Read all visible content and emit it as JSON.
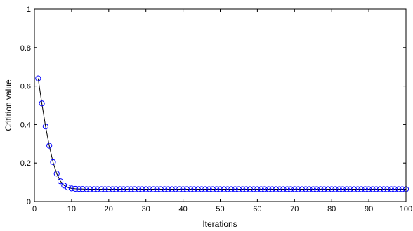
{
  "chart_data": {
    "type": "line",
    "xlabel": "Iterations",
    "ylabel": "Critirion value",
    "xlim": [
      0,
      100
    ],
    "ylim": [
      0,
      1
    ],
    "xticks": [
      "0",
      "10",
      "20",
      "30",
      "40",
      "50",
      "60",
      "70",
      "80",
      "90",
      "100"
    ],
    "yticks": [
      "0",
      "0.2",
      "0.4",
      "0.6",
      "0.8",
      "1"
    ],
    "grid": false,
    "line_color": "#000000",
    "marker_color": "#0000ff",
    "marker": "circle",
    "series": [
      {
        "x": [
          1,
          2,
          3,
          4,
          5,
          6,
          7,
          8,
          9,
          10,
          11,
          12,
          13,
          14,
          15,
          16,
          17,
          18,
          19,
          20,
          21,
          22,
          23,
          24,
          25,
          26,
          27,
          28,
          29,
          30,
          31,
          32,
          33,
          34,
          35,
          36,
          37,
          38,
          39,
          40,
          41,
          42,
          43,
          44,
          45,
          46,
          47,
          48,
          49,
          50,
          51,
          52,
          53,
          54,
          55,
          56,
          57,
          58,
          59,
          60,
          61,
          62,
          63,
          64,
          65,
          66,
          67,
          68,
          69,
          70,
          71,
          72,
          73,
          74,
          75,
          76,
          77,
          78,
          79,
          80,
          81,
          82,
          83,
          84,
          85,
          86,
          87,
          88,
          89,
          90,
          91,
          92,
          93,
          94,
          95,
          96,
          97,
          98,
          99,
          100
        ],
        "y": [
          0.64,
          0.51,
          0.39,
          0.29,
          0.205,
          0.145,
          0.105,
          0.083,
          0.073,
          0.068,
          0.066,
          0.065,
          0.065,
          0.064,
          0.064,
          0.064,
          0.064,
          0.064,
          0.064,
          0.064,
          0.064,
          0.064,
          0.064,
          0.064,
          0.064,
          0.064,
          0.064,
          0.064,
          0.064,
          0.064,
          0.064,
          0.064,
          0.064,
          0.064,
          0.064,
          0.064,
          0.064,
          0.064,
          0.064,
          0.064,
          0.064,
          0.064,
          0.064,
          0.064,
          0.064,
          0.064,
          0.064,
          0.064,
          0.064,
          0.064,
          0.064,
          0.064,
          0.064,
          0.064,
          0.064,
          0.064,
          0.064,
          0.064,
          0.064,
          0.064,
          0.064,
          0.064,
          0.064,
          0.064,
          0.064,
          0.064,
          0.064,
          0.064,
          0.064,
          0.064,
          0.064,
          0.064,
          0.064,
          0.064,
          0.064,
          0.064,
          0.064,
          0.064,
          0.064,
          0.064,
          0.064,
          0.064,
          0.064,
          0.064,
          0.064,
          0.064,
          0.064,
          0.064,
          0.064,
          0.064,
          0.064,
          0.064,
          0.064,
          0.064,
          0.064,
          0.064,
          0.064,
          0.064,
          0.064,
          0.064
        ]
      }
    ]
  }
}
